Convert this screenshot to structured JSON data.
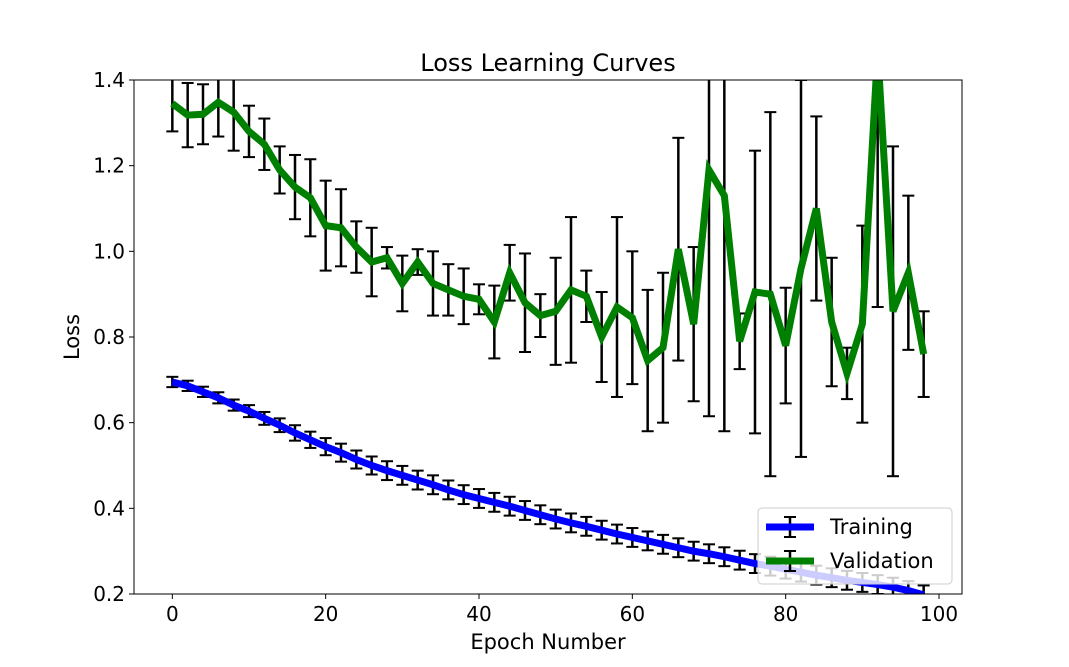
{
  "chart_data": {
    "type": "line",
    "title": "Loss Learning Curves",
    "xlabel": "Epoch Number",
    "ylabel": "Loss",
    "xlim": [
      -5,
      103
    ],
    "ylim": [
      0.2,
      1.4
    ],
    "xticks": [
      0,
      20,
      40,
      60,
      80,
      100
    ],
    "yticks": [
      0.2,
      0.4,
      0.6,
      0.8,
      1.0,
      1.2,
      1.4
    ],
    "grid": false,
    "legend_position": "lower-right",
    "series": [
      {
        "name": "Training",
        "color": "#0000ff",
        "x": [
          0,
          2,
          4,
          6,
          8,
          10,
          12,
          14,
          16,
          18,
          20,
          22,
          24,
          26,
          28,
          30,
          32,
          34,
          36,
          38,
          40,
          42,
          44,
          46,
          48,
          50,
          52,
          54,
          56,
          58,
          60,
          62,
          64,
          66,
          68,
          70,
          72,
          74,
          76,
          78,
          80,
          82,
          84,
          86,
          88,
          90,
          92,
          94,
          96,
          98
        ],
        "y": [
          0.695,
          0.686,
          0.672,
          0.658,
          0.641,
          0.627,
          0.61,
          0.594,
          0.576,
          0.56,
          0.544,
          0.53,
          0.514,
          0.5,
          0.488,
          0.477,
          0.466,
          0.455,
          0.443,
          0.432,
          0.423,
          0.414,
          0.405,
          0.395,
          0.385,
          0.375,
          0.366,
          0.358,
          0.349,
          0.34,
          0.332,
          0.324,
          0.316,
          0.308,
          0.3,
          0.294,
          0.287,
          0.279,
          0.271,
          0.265,
          0.258,
          0.251,
          0.244,
          0.238,
          0.232,
          0.227,
          0.222,
          0.216,
          0.208,
          0.198
        ],
        "err": [
          0.012,
          0.012,
          0.012,
          0.013,
          0.013,
          0.014,
          0.015,
          0.016,
          0.018,
          0.019,
          0.02,
          0.021,
          0.021,
          0.021,
          0.022,
          0.022,
          0.022,
          0.022,
          0.022,
          0.022,
          0.022,
          0.022,
          0.022,
          0.022,
          0.022,
          0.022,
          0.022,
          0.022,
          0.022,
          0.022,
          0.022,
          0.022,
          0.022,
          0.022,
          0.022,
          0.022,
          0.022,
          0.022,
          0.022,
          0.022,
          0.022,
          0.022,
          0.022,
          0.022,
          0.022,
          0.022,
          0.022,
          0.022,
          0.022,
          0.022
        ]
      },
      {
        "name": "Validation",
        "color": "#008000",
        "x": [
          0,
          2,
          4,
          6,
          8,
          10,
          12,
          14,
          16,
          18,
          20,
          22,
          24,
          26,
          28,
          30,
          32,
          34,
          36,
          38,
          40,
          42,
          44,
          46,
          48,
          50,
          52,
          54,
          56,
          58,
          60,
          62,
          64,
          66,
          68,
          70,
          72,
          74,
          76,
          78,
          80,
          82,
          84,
          86,
          88,
          90,
          92,
          94,
          96,
          98
        ],
        "y": [
          1.345,
          1.318,
          1.32,
          1.348,
          1.325,
          1.28,
          1.25,
          1.19,
          1.15,
          1.125,
          1.06,
          1.055,
          1.01,
          0.975,
          0.985,
          0.925,
          0.975,
          0.925,
          0.91,
          0.895,
          0.888,
          0.835,
          0.95,
          0.88,
          0.85,
          0.86,
          0.91,
          0.895,
          0.8,
          0.87,
          0.845,
          0.745,
          0.775,
          1.005,
          0.83,
          1.19,
          1.13,
          0.79,
          0.905,
          0.9,
          0.78,
          0.96,
          1.1,
          0.835,
          0.715,
          0.83,
          1.47,
          0.86,
          0.95,
          0.76
        ],
        "err": [
          0.065,
          0.075,
          0.07,
          0.08,
          0.09,
          0.06,
          0.06,
          0.055,
          0.075,
          0.09,
          0.105,
          0.09,
          0.06,
          0.08,
          0.025,
          0.065,
          0.03,
          0.075,
          0.06,
          0.065,
          0.035,
          0.085,
          0.065,
          0.115,
          0.05,
          0.125,
          0.17,
          0.06,
          0.105,
          0.21,
          0.155,
          0.165,
          0.175,
          0.26,
          0.18,
          0.575,
          0.55,
          0.065,
          0.33,
          0.425,
          0.135,
          0.44,
          0.215,
          0.15,
          0.06,
          0.23,
          0.6,
          0.385,
          0.18,
          0.1
        ]
      }
    ]
  }
}
